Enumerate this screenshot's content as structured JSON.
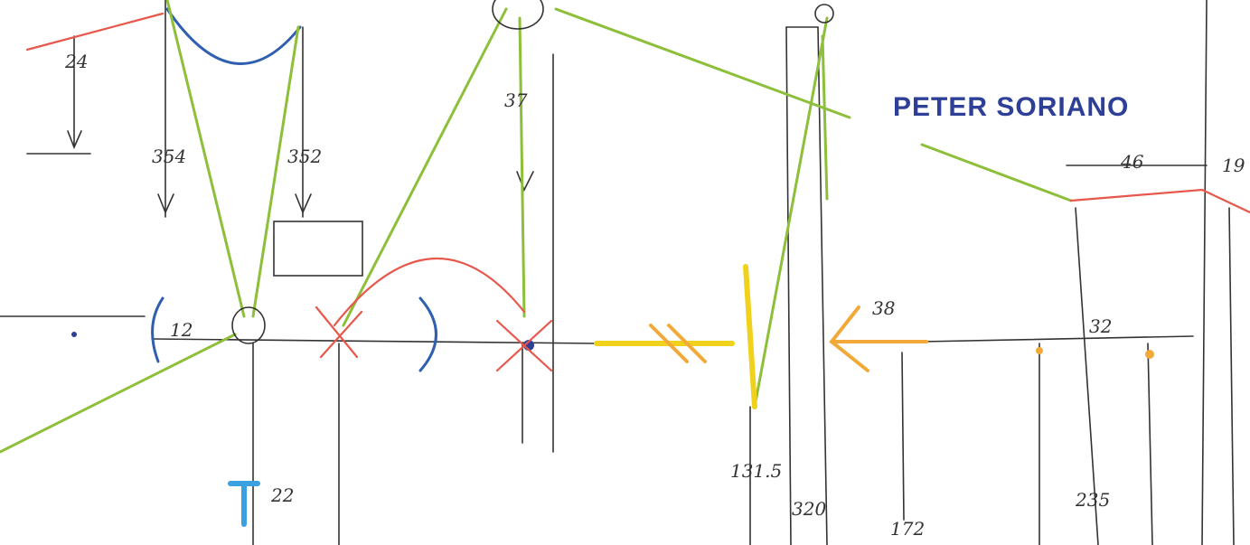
{
  "title": "PETER SORIANO",
  "annotations": [
    "354",
    "352",
    "37",
    "131.5",
    "320",
    "172",
    "235",
    "38",
    "46",
    "32",
    "22",
    "12",
    "19",
    "24"
  ]
}
